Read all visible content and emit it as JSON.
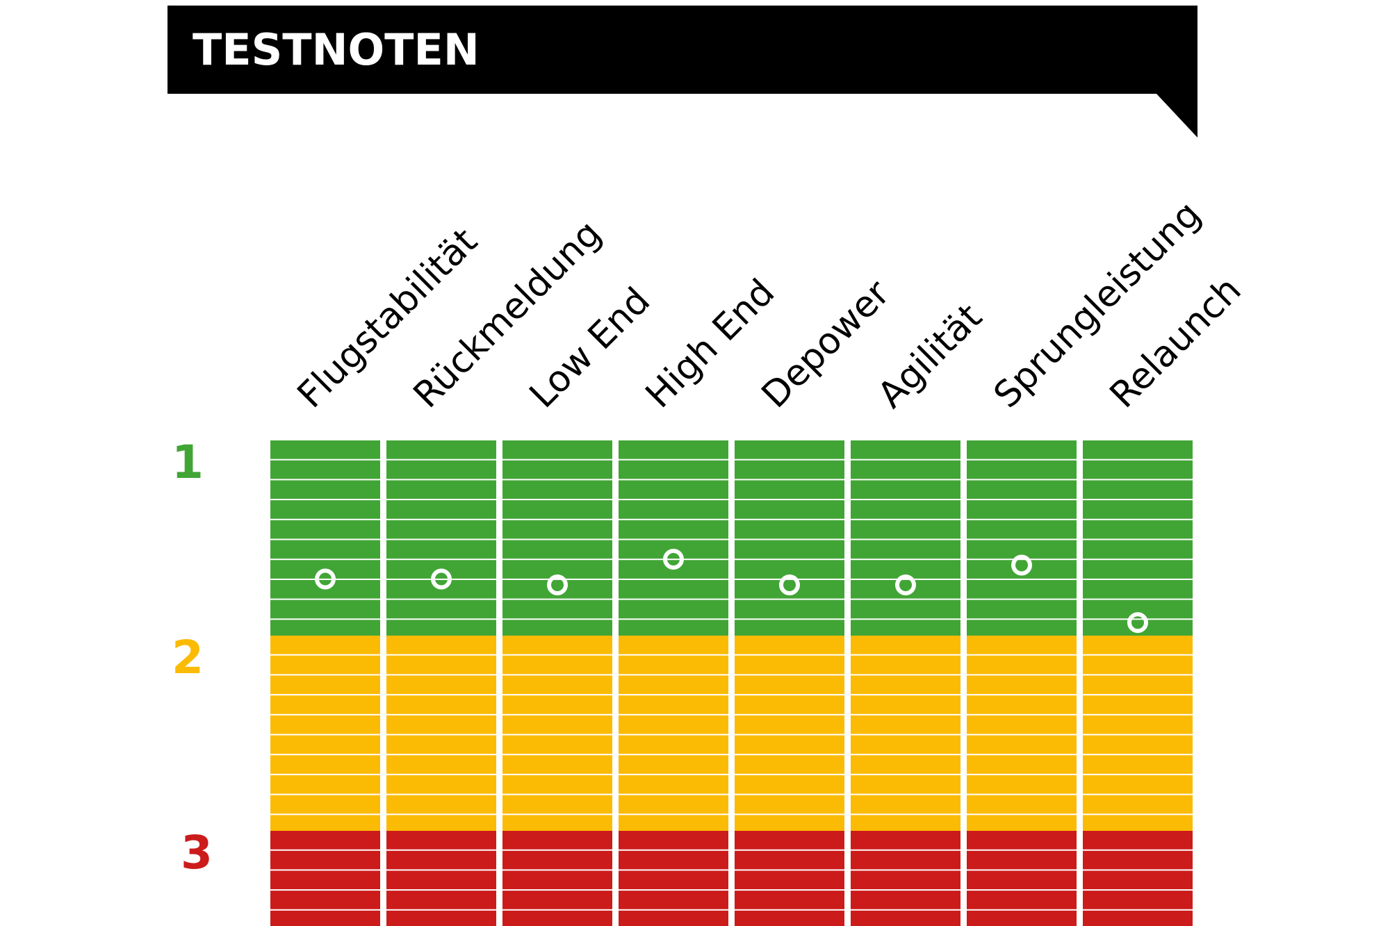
{
  "title": "TESTNOTEN",
  "colors": {
    "banner": "#000000",
    "band_1": "#41a535",
    "band_2": "#fbbb05",
    "band_3": "#cc1b1b",
    "marker": "#ffffff"
  },
  "chart_data": {
    "type": "scatter",
    "title": "TESTNOTEN",
    "categories": [
      "Flugstabilität",
      "Rückmeldung",
      "Low End",
      "High End",
      "Depower",
      "Agilität",
      "Sprungleistung",
      "Relaunch"
    ],
    "grades": [
      {
        "label": "1",
        "stripes": 10
      },
      {
        "label": "2",
        "stripes": 10
      },
      {
        "label": "3",
        "stripes": 5
      }
    ],
    "y_direction": "top = best (1), bottom = worst (3)",
    "ylim": [
      0.5,
      3.5
    ],
    "values": [
      1.2,
      1.2,
      1.23,
      1.1,
      1.23,
      1.23,
      1.13,
      1.42
    ],
    "grid": false,
    "legend": "none"
  }
}
